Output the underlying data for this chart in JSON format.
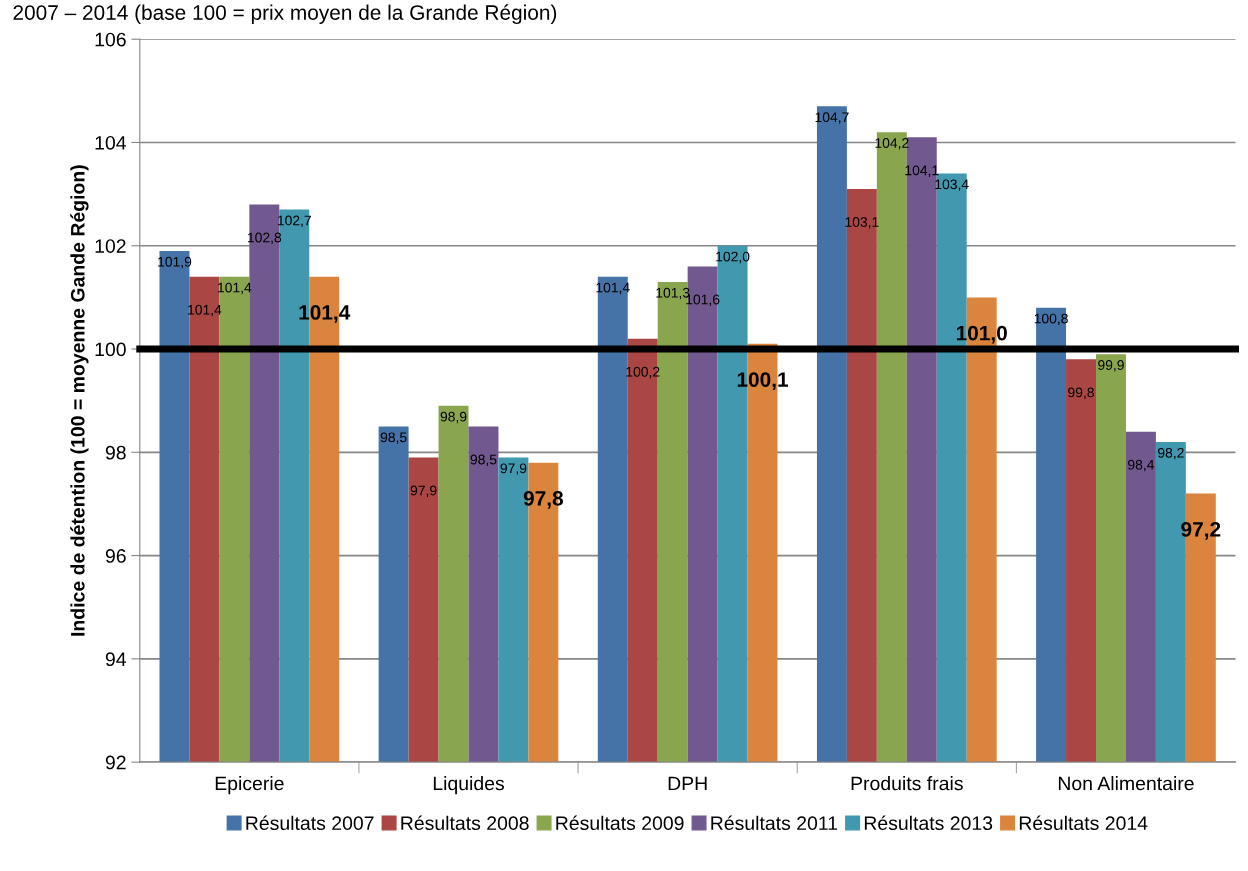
{
  "chart_data": {
    "type": "bar",
    "title": "2007 – 2014 (base 100 = prix moyen de la Grande Région)",
    "ylabel": "Indice de détention (100 = moyenne Gande Région)",
    "categories": [
      "Epicerie",
      "Liquides",
      "DPH",
      "Produits frais",
      "Non Alimentaire"
    ],
    "series": [
      {
        "name": "Résultats 2007",
        "color": "#4572a7",
        "values": [
          101.9,
          98.5,
          101.4,
          104.7,
          100.8
        ],
        "value_labels": [
          "101,9",
          "98,5",
          "101,4",
          "104,7",
          "100,8"
        ]
      },
      {
        "name": "Résultats 2008",
        "color": "#aa4643",
        "values": [
          101.4,
          97.9,
          100.2,
          103.1,
          99.8
        ],
        "value_labels": [
          "101,4",
          "97,9",
          "100,2",
          "103,1",
          "99,8"
        ]
      },
      {
        "name": "Résultats 2009",
        "color": "#89a54e",
        "values": [
          101.4,
          98.9,
          101.3,
          104.2,
          99.9
        ],
        "value_labels": [
          "101,4",
          "98,9",
          "101,3",
          "104,2",
          "99,9"
        ]
      },
      {
        "name": "Résultats 2011",
        "color": "#71588f",
        "values": [
          102.8,
          98.5,
          101.6,
          104.1,
          98.4
        ],
        "value_labels": [
          "102,8",
          "98,5",
          "101,6",
          "104,1",
          "98,4"
        ]
      },
      {
        "name": "Résultats 2013",
        "color": "#4198af",
        "values": [
          102.7,
          97.9,
          102.0,
          103.4,
          98.2
        ],
        "value_labels": [
          "102,7",
          "97,9",
          "102,0",
          "103,4",
          "98,2"
        ]
      },
      {
        "name": "Résultats 2014",
        "color": "#db843d",
        "values": [
          101.4,
          97.8,
          100.1,
          101.0,
          97.2
        ],
        "value_labels": [
          "101,4",
          "97,8",
          "100,1",
          "101,0",
          "97,2"
        ]
      }
    ],
    "ylim": [
      92,
      106
    ],
    "yticks": [
      92,
      94,
      96,
      98,
      100,
      102,
      104,
      106
    ],
    "ref_lines": [
      {
        "axis": "y",
        "value": 100,
        "color": "#000000"
      }
    ],
    "grid": "y",
    "legend": "bottom"
  }
}
